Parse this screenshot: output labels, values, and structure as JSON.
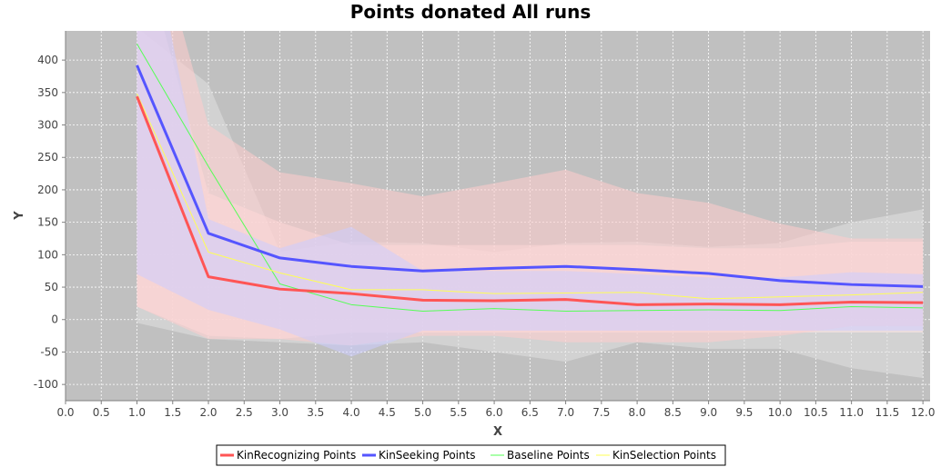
{
  "chart_data": {
    "type": "line",
    "title": "Points donated All runs",
    "xlabel": "X",
    "ylabel": "Y",
    "xlim": [
      0,
      12.1
    ],
    "ylim": [
      -125,
      445
    ],
    "xticks": [
      "0.0",
      "0.5",
      "1.0",
      "1.5",
      "2.0",
      "2.5",
      "3.0",
      "3.5",
      "4.0",
      "4.5",
      "5.0",
      "5.5",
      "6.0",
      "6.5",
      "7.0",
      "7.5",
      "8.0",
      "8.5",
      "9.0",
      "9.5",
      "10.0",
      "10.5",
      "11.0",
      "11.5",
      "12.0"
    ],
    "yticks": [
      "-100",
      "-50",
      "0",
      "50",
      "100",
      "150",
      "200",
      "250",
      "300",
      "350",
      "400"
    ],
    "grid": true,
    "legend_position": "bottom",
    "plot_background": "#c0c0c0",
    "x": [
      1,
      2,
      3,
      4,
      5,
      6,
      7,
      8,
      9,
      10,
      11,
      12
    ],
    "series": [
      {
        "name": "KinRecognizing Points",
        "color": "#ff5555",
        "line_width": 3,
        "values": [
          344,
          66,
          47,
          40,
          30,
          29,
          31,
          23,
          24,
          23,
          27,
          26
        ],
        "band_upper": [
          700,
          300,
          227,
          210,
          190,
          210,
          231,
          195,
          180,
          148,
          125,
          125
        ],
        "band_lower": [
          20,
          -30,
          -30,
          -40,
          -25,
          -25,
          -35,
          -35,
          -35,
          -25,
          -10,
          -10
        ],
        "band_color": "#ffcccc"
      },
      {
        "name": "KinSeeking Points",
        "color": "#5555ff",
        "line_width": 3,
        "values": [
          392,
          133,
          95,
          82,
          75,
          79,
          82,
          77,
          71,
          60,
          54,
          51
        ],
        "band_upper": [
          700,
          155,
          110,
          143,
          75,
          75,
          75,
          70,
          65,
          65,
          73,
          70
        ],
        "band_lower": [
          70,
          15,
          -15,
          -57,
          -17,
          -17,
          -17,
          -17,
          -17,
          -17,
          -17,
          -17
        ],
        "band_color": "#ccccff"
      },
      {
        "name": "Baseline Points",
        "color": "#55ff55",
        "line_width": 1,
        "values": [
          425,
          236,
          55,
          23,
          13,
          17,
          13,
          14,
          15,
          14,
          20,
          18
        ],
        "band_upper": [
          450,
          363,
          105,
          120,
          118,
          104,
          118,
          120,
          112,
          118,
          150,
          170
        ],
        "band_lower": [
          -5,
          -30,
          -35,
          -40,
          -35,
          -50,
          -65,
          -35,
          -45,
          -45,
          -75,
          -90
        ],
        "band_color": "#e0e0e0"
      },
      {
        "name": "KinSelection Points",
        "color": "#ffff55",
        "line_width": 1,
        "values": [
          348,
          104,
          72,
          46,
          46,
          40,
          41,
          42,
          32,
          35,
          38,
          42
        ],
        "band_upper": [
          600,
          195,
          150,
          115,
          115,
          115,
          115,
          115,
          110,
          110,
          120,
          120
        ],
        "band_lower": [
          20,
          -25,
          -30,
          -20,
          -20,
          -20,
          -20,
          -20,
          -20,
          -20,
          -20,
          -20
        ],
        "band_color": "#ffe6e6"
      }
    ]
  }
}
